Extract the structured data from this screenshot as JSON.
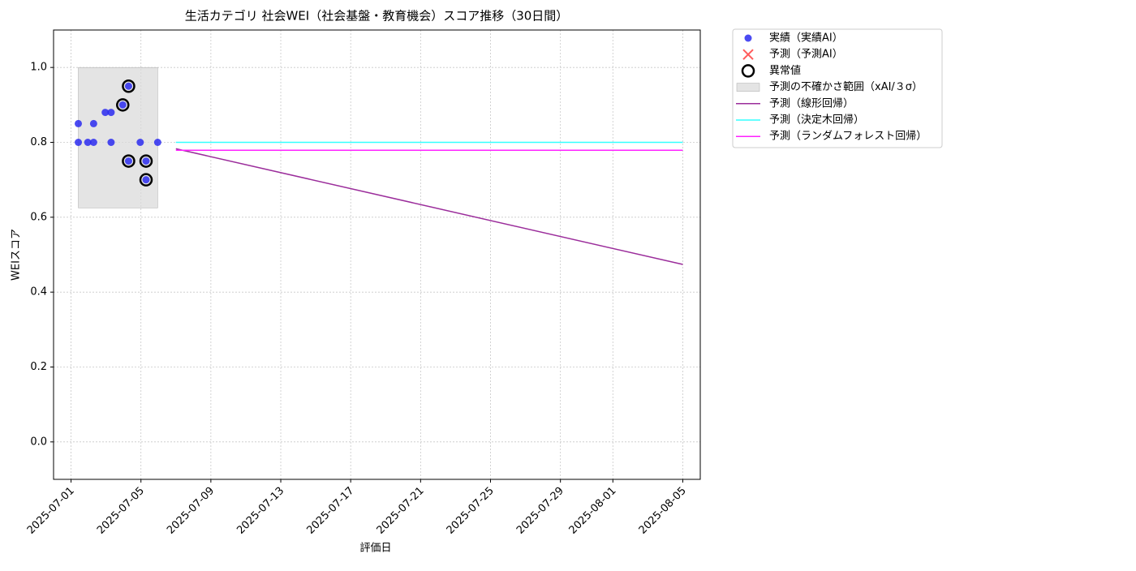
{
  "chart_data": {
    "type": "line",
    "title": "生活カテゴリ 社会WEI（社会基盤・教育機会）スコア推移（30日間）",
    "x_label": "評価日",
    "y_label": "WEIスコア",
    "xlim": [
      "2025-06-30",
      "2025-08-06"
    ],
    "ylim": [
      -0.1,
      1.1
    ],
    "xticks": [
      "2025-07-01",
      "2025-07-05",
      "2025-07-09",
      "2025-07-13",
      "2025-07-17",
      "2025-07-21",
      "2025-07-25",
      "2025-07-29",
      "2025-08-01",
      "2025-08-05"
    ],
    "yticks": [
      {
        "value": 0,
        "label": "0.0"
      },
      0.2,
      0.4,
      0.6,
      0.8,
      {
        "value": 1,
        "label": "1.0"
      }
    ],
    "grid": true,
    "legend": "outside-upper-right",
    "series": [
      {
        "name": "実績（実績AI）",
        "type": "scatter",
        "marker": "dot",
        "color": "#2b2bf0",
        "x": [
          "2025-07-01T10:00",
          "2025-07-01T10:00",
          "2025-07-01T23:00",
          "2025-07-02T07:00",
          "2025-07-02T07:00",
          "2025-07-02T23:00",
          "2025-07-03T07:00",
          "2025-07-03T07:00",
          "2025-07-03T23:00",
          "2025-07-04T07:00",
          "2025-07-04T07:00",
          "2025-07-04T23:00",
          "2025-07-05T07:00",
          "2025-07-05T07:00",
          "2025-07-05T23:00"
        ],
        "values": [
          0.85,
          0.8,
          0.8,
          0.85,
          0.8,
          0.88,
          0.88,
          0.8,
          0.9,
          0.95,
          0.75,
          0.8,
          0.75,
          0.7,
          0.8
        ]
      },
      {
        "name": "予測（予測AI）",
        "type": "scatter",
        "marker": "x",
        "color": "#ff3333",
        "x": [],
        "values": []
      },
      {
        "name": "異常値",
        "type": "scatter",
        "marker": "ring",
        "color": "#000000",
        "x": [
          "2025-07-03T23:00",
          "2025-07-04T07:00",
          "2025-07-04T07:00",
          "2025-07-05T07:00",
          "2025-07-05T07:00"
        ],
        "values": [
          0.9,
          0.95,
          0.75,
          0.75,
          0.7
        ]
      },
      {
        "name": "予測の不確かさ範囲（xAI/３σ）",
        "type": "band",
        "color": "#d9d9d9",
        "x": [
          "2025-07-01T10:00",
          "2025-07-05T23:00"
        ],
        "lower": [
          0.625,
          0.625
        ],
        "upper": [
          1.0,
          1.0
        ]
      },
      {
        "name": "予測（線形回帰）",
        "type": "line",
        "color": "#9b2d9b",
        "x": [
          "2025-07-07",
          "2025-08-05"
        ],
        "values": [
          0.783,
          0.474
        ]
      },
      {
        "name": "予測（決定木回帰）",
        "type": "line",
        "color": "#33ffff",
        "x": [
          "2025-07-07",
          "2025-08-05"
        ],
        "values": [
          0.8,
          0.8
        ]
      },
      {
        "name": "予測（ランダムフォレスト回帰）",
        "type": "line",
        "color": "#ff22ff",
        "x": [
          "2025-07-07",
          "2025-08-05"
        ],
        "values": [
          0.779,
          0.779
        ]
      }
    ]
  }
}
